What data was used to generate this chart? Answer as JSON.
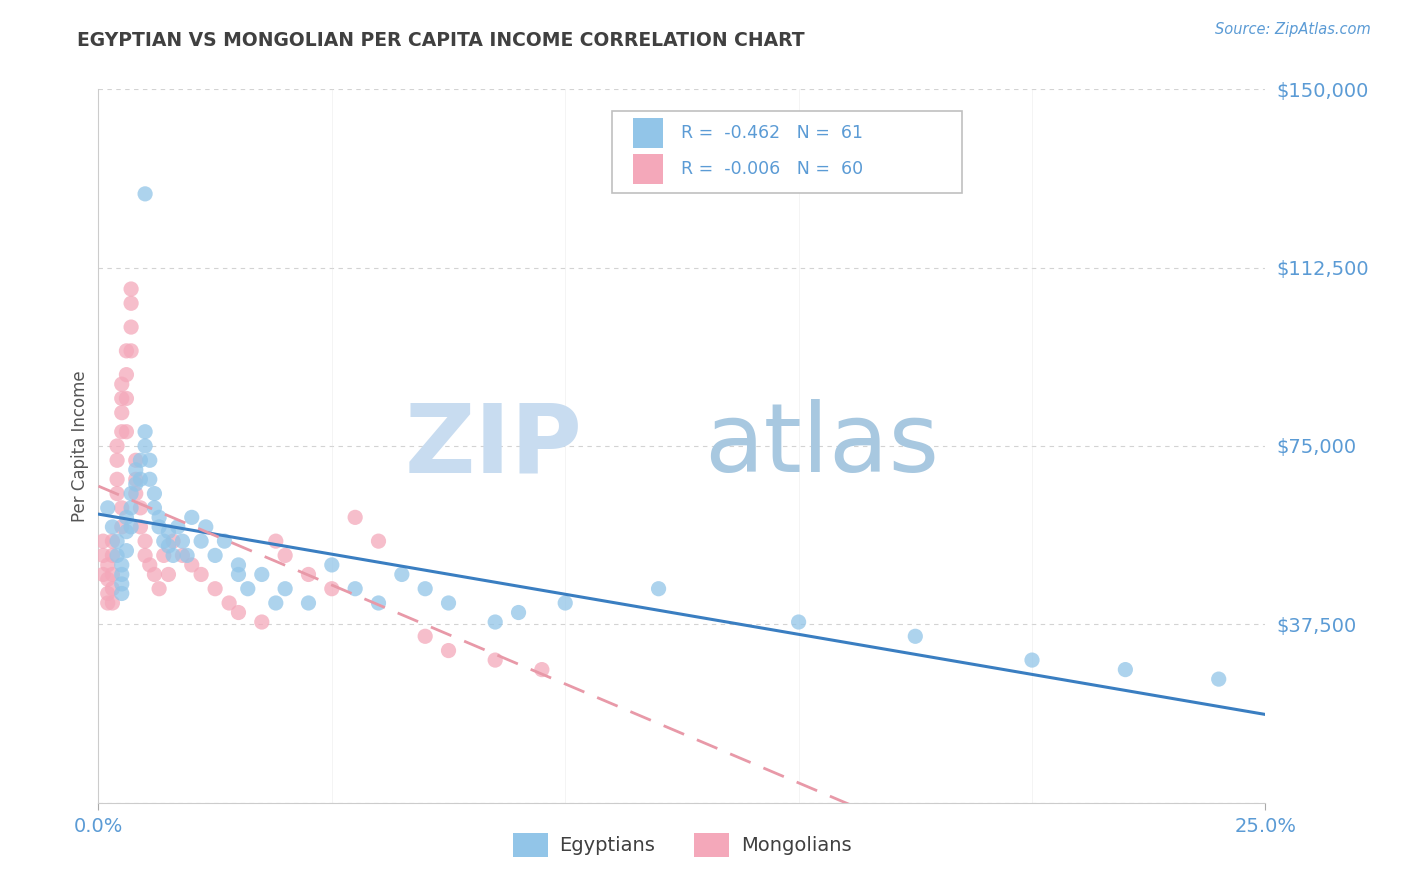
{
  "title": "EGYPTIAN VS MONGOLIAN PER CAPITA INCOME CORRELATION CHART",
  "source_text": "Source: ZipAtlas.com",
  "ylabel": "Per Capita Income",
  "xlim": [
    0.0,
    0.25
  ],
  "ylim": [
    0,
    150000
  ],
  "yticks": [
    0,
    37500,
    75000,
    112500,
    150000
  ],
  "ytick_labels": [
    "",
    "$37,500",
    "$75,000",
    "$112,500",
    "$150,000"
  ],
  "xtick_labels": [
    "0.0%",
    "25.0%"
  ],
  "color_egyptian": "#92C5E8",
  "color_mongolian": "#F4A8BA",
  "color_line_egyptian": "#3A7EC1",
  "color_line_mongolian": "#E899A8",
  "background_color": "#FFFFFF",
  "grid_color": "#C8C8C8",
  "tick_label_color": "#5B9BD5",
  "title_color": "#404040",
  "egyptians_x": [
    0.002,
    0.003,
    0.004,
    0.004,
    0.005,
    0.005,
    0.005,
    0.005,
    0.006,
    0.006,
    0.006,
    0.007,
    0.007,
    0.007,
    0.008,
    0.008,
    0.009,
    0.009,
    0.01,
    0.01,
    0.01,
    0.011,
    0.011,
    0.012,
    0.012,
    0.013,
    0.013,
    0.014,
    0.015,
    0.015,
    0.016,
    0.017,
    0.018,
    0.019,
    0.02,
    0.022,
    0.023,
    0.025,
    0.027,
    0.03,
    0.03,
    0.032,
    0.035,
    0.038,
    0.04,
    0.045,
    0.05,
    0.055,
    0.06,
    0.065,
    0.07,
    0.075,
    0.085,
    0.09,
    0.1,
    0.12,
    0.15,
    0.175,
    0.2,
    0.22,
    0.24
  ],
  "egyptians_y": [
    62000,
    58000,
    55000,
    52000,
    50000,
    48000,
    46000,
    44000,
    60000,
    57000,
    53000,
    65000,
    62000,
    58000,
    70000,
    67000,
    72000,
    68000,
    78000,
    75000,
    128000,
    72000,
    68000,
    65000,
    62000,
    60000,
    58000,
    55000,
    57000,
    54000,
    52000,
    58000,
    55000,
    52000,
    60000,
    55000,
    58000,
    52000,
    55000,
    50000,
    48000,
    45000,
    48000,
    42000,
    45000,
    42000,
    50000,
    45000,
    42000,
    48000,
    45000,
    42000,
    38000,
    40000,
    42000,
    45000,
    38000,
    35000,
    30000,
    28000,
    26000
  ],
  "mongolians_x": [
    0.001,
    0.001,
    0.001,
    0.002,
    0.002,
    0.002,
    0.002,
    0.003,
    0.003,
    0.003,
    0.003,
    0.003,
    0.004,
    0.004,
    0.004,
    0.004,
    0.005,
    0.005,
    0.005,
    0.005,
    0.005,
    0.005,
    0.006,
    0.006,
    0.006,
    0.006,
    0.007,
    0.007,
    0.007,
    0.007,
    0.008,
    0.008,
    0.008,
    0.009,
    0.009,
    0.01,
    0.01,
    0.011,
    0.012,
    0.013,
    0.014,
    0.015,
    0.016,
    0.018,
    0.02,
    0.022,
    0.025,
    0.028,
    0.03,
    0.035,
    0.038,
    0.04,
    0.045,
    0.05,
    0.055,
    0.06,
    0.07,
    0.075,
    0.085,
    0.095
  ],
  "mongolians_y": [
    55000,
    52000,
    48000,
    50000,
    47000,
    44000,
    42000,
    55000,
    52000,
    48000,
    45000,
    42000,
    75000,
    72000,
    68000,
    65000,
    88000,
    85000,
    82000,
    78000,
    62000,
    58000,
    95000,
    90000,
    85000,
    78000,
    108000,
    105000,
    100000,
    95000,
    72000,
    68000,
    65000,
    62000,
    58000,
    55000,
    52000,
    50000,
    48000,
    45000,
    52000,
    48000,
    55000,
    52000,
    50000,
    48000,
    45000,
    42000,
    40000,
    38000,
    55000,
    52000,
    48000,
    45000,
    60000,
    55000,
    35000,
    32000,
    30000,
    28000
  ]
}
